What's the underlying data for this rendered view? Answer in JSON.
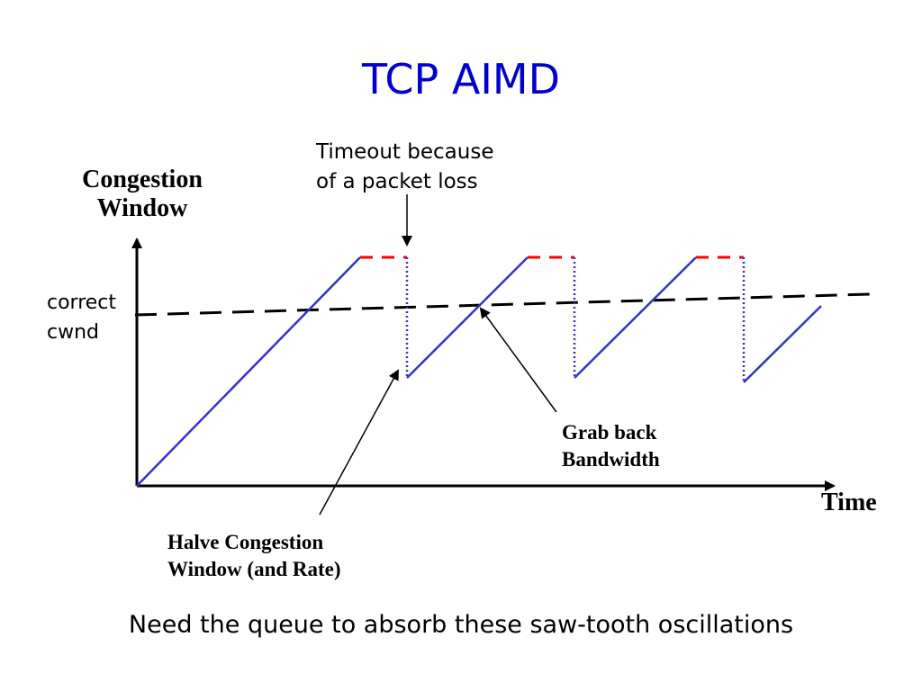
{
  "title": "TCP AIMD",
  "y_axis_label": "Congestion\nWindow",
  "x_axis_label": "Time",
  "annotations": {
    "timeout": "Timeout because\nof a packet loss",
    "correct_cwnd": "correct\ncwnd",
    "grab_back": "Grab back\nBandwidth",
    "halve": "Halve Congestion\nWindow (and Rate)"
  },
  "caption": "Need the queue to absorb these saw-tooth oscillations",
  "colors": {
    "title": "#0000cc",
    "cwnd_line": "#3333cc",
    "capacity_overshoot": "#ff0000",
    "axes": "#000000"
  }
}
